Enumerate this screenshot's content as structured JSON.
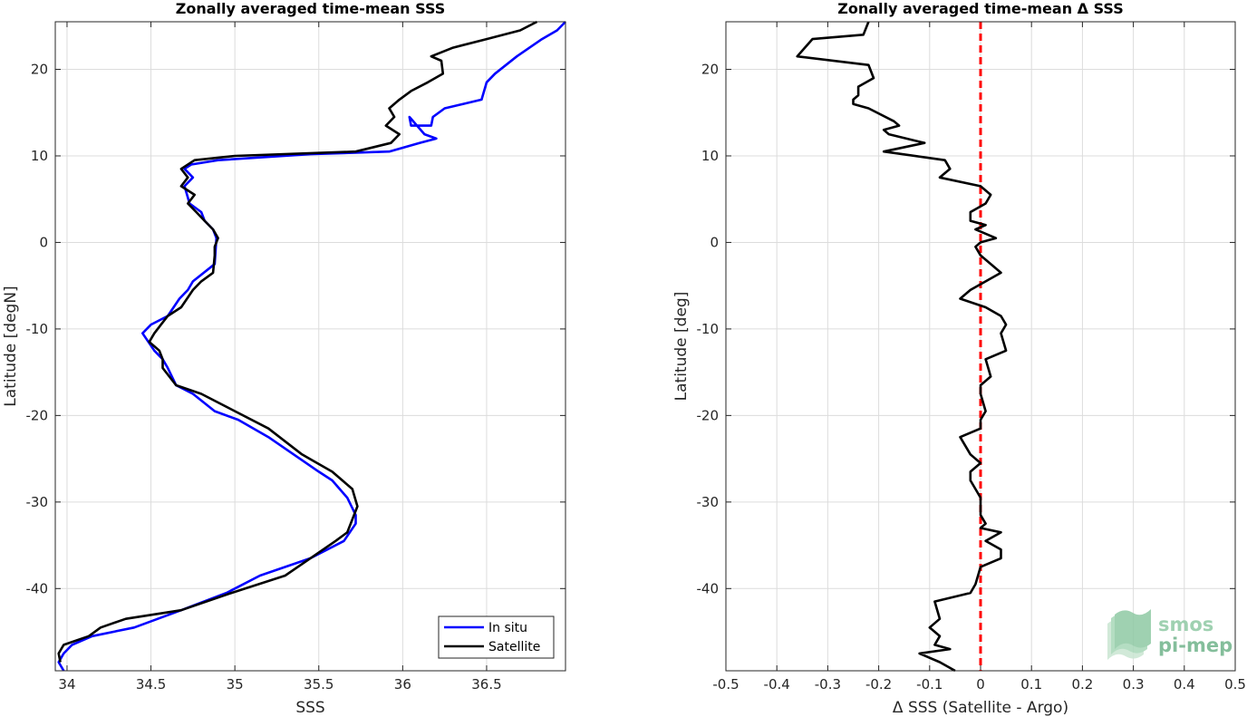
{
  "chart_data": [
    {
      "type": "line",
      "title": "Zonally averaged time-mean SSS",
      "xlabel": "SSS",
      "ylabel": "Latitude [degN]",
      "xlim": [
        33.93,
        36.97
      ],
      "ylim": [
        -49.5,
        25.5
      ],
      "xticks": [
        "34",
        "34.5",
        "35",
        "35.5",
        "36",
        "36.5"
      ],
      "yticks": [
        "20",
        "10",
        "0",
        "-10",
        "-20",
        "-30",
        "-40"
      ],
      "grid": true,
      "legend_position": "bottom-right",
      "series": [
        {
          "name": "In situ",
          "color": "#0000ff",
          "x": [
            36.97,
            36.92,
            36.83,
            36.68,
            36.55,
            36.5,
            36.47,
            36.25,
            36.18,
            36.17,
            36.05,
            36.04,
            36.13,
            36.2,
            36.1,
            35.92,
            35.45,
            34.9,
            34.74,
            34.7,
            34.75,
            34.7,
            34.73,
            34.8,
            34.82,
            34.87,
            34.89,
            34.88,
            34.75,
            34.72,
            34.67,
            34.6,
            34.5,
            34.45,
            34.52,
            34.57,
            34.6,
            34.65,
            34.75,
            34.88,
            35.02,
            35.2,
            35.35,
            35.5,
            35.58,
            35.67,
            35.72,
            35.72,
            35.65,
            35.45,
            35.15,
            34.95,
            34.68,
            34.4,
            34.15,
            34.03,
            33.98,
            33.95,
            33.98
          ],
          "y": [
            25.5,
            24.5,
            23.5,
            21.5,
            19.5,
            18.5,
            16.5,
            15.5,
            14.5,
            13.5,
            13.5,
            14.5,
            12.5,
            12.0,
            11.5,
            10.5,
            10.2,
            9.5,
            9.0,
            8.5,
            7.5,
            6.5,
            4.5,
            3.5,
            2.5,
            1.5,
            0.5,
            -2.5,
            -4.5,
            -5.5,
            -6.5,
            -8.5,
            -9.5,
            -10.5,
            -12.5,
            -13.5,
            -14.5,
            -16.5,
            -17.5,
            -19.5,
            -20.5,
            -22.5,
            -24.5,
            -26.5,
            -27.5,
            -29.5,
            -31.5,
            -32.5,
            -34.5,
            -36.5,
            -38.5,
            -40.5,
            -42.5,
            -44.5,
            -45.5,
            -46.5,
            -47.5,
            -48.5,
            -49.5
          ]
        },
        {
          "name": "Satellite",
          "color": "#000000",
          "x": [
            36.8,
            36.7,
            36.5,
            36.3,
            36.17,
            36.23,
            36.24,
            36.15,
            36.05,
            35.98,
            35.92,
            35.95,
            35.9,
            35.98,
            35.93,
            35.72,
            35.0,
            34.76,
            34.68,
            34.72,
            34.68,
            34.76,
            34.72,
            34.77,
            34.82,
            34.87,
            34.9,
            34.88,
            34.88,
            34.87,
            34.8,
            34.75,
            34.68,
            34.6,
            34.56,
            34.52,
            34.49,
            34.55,
            34.57,
            34.57,
            34.65,
            34.8,
            35.0,
            35.2,
            35.4,
            35.58,
            35.7,
            35.73,
            35.67,
            35.6,
            35.45,
            35.3,
            34.98,
            34.68,
            34.35,
            34.2,
            34.13,
            33.98,
            33.95,
            33.96
          ],
          "y": [
            25.5,
            24.5,
            23.5,
            22.5,
            21.5,
            21.0,
            19.5,
            18.5,
            17.5,
            16.5,
            15.5,
            14.5,
            13.5,
            12.5,
            11.5,
            10.5,
            10.0,
            9.5,
            8.5,
            7.5,
            6.5,
            5.5,
            4.5,
            3.5,
            2.5,
            1.5,
            0.5,
            -0.5,
            -1.5,
            -3.5,
            -4.5,
            -5.5,
            -7.5,
            -8.5,
            -9.5,
            -10.5,
            -11.5,
            -12.5,
            -13.5,
            -14.5,
            -16.5,
            -17.5,
            -19.5,
            -21.5,
            -24.5,
            -26.5,
            -28.5,
            -30.5,
            -33.5,
            -34.5,
            -36.5,
            -38.5,
            -40.5,
            -42.5,
            -43.5,
            -44.5,
            -45.5,
            -46.5,
            -47.5,
            -48.5
          ]
        }
      ]
    },
    {
      "type": "line",
      "title": "Zonally averaged time-mean Δ SSS",
      "xlabel": "Δ SSS (Satellite - Argo)",
      "ylabel": "Latitude [deg]",
      "xlim": [
        -0.5,
        0.5
      ],
      "ylim": [
        -49.5,
        25.5
      ],
      "xticks": [
        "-0.5",
        "-0.4",
        "-0.3",
        "-0.2",
        "-0.1",
        "0",
        "0.1",
        "0.2",
        "0.3",
        "0.4",
        "0.5"
      ],
      "yticks": [
        "20",
        "10",
        "0",
        "-10",
        "-20",
        "-30",
        "-40"
      ],
      "grid": true,
      "reference_line": {
        "x": 0,
        "color": "#ff0000",
        "style": "dashed"
      },
      "series": [
        {
          "color": "#000000",
          "x": [
            -0.22,
            -0.23,
            -0.33,
            -0.36,
            -0.22,
            -0.21,
            -0.24,
            -0.24,
            -0.25,
            -0.25,
            -0.22,
            -0.17,
            -0.16,
            -0.19,
            -0.18,
            -0.11,
            -0.19,
            -0.07,
            -0.06,
            -0.08,
            0.0,
            0.02,
            0.01,
            -0.02,
            -0.02,
            0.01,
            -0.01,
            0.03,
            0.0,
            -0.01,
            0.0,
            0.02,
            0.04,
            -0.02,
            -0.04,
            0.01,
            0.04,
            0.05,
            0.04,
            0.05,
            0.01,
            0.02,
            0.0,
            0.0,
            0.01,
            0.0,
            0.0,
            -0.04,
            -0.02,
            0.0,
            -0.02,
            -0.02,
            -0.01,
            0.0,
            0.0,
            0.0,
            0.01,
            0.0,
            0.04,
            0.01,
            0.04,
            0.04,
            0.0,
            -0.01,
            -0.02,
            -0.09,
            -0.08,
            -0.1,
            -0.08,
            -0.09,
            -0.06,
            -0.12,
            -0.08,
            -0.05
          ],
          "y": [
            25.5,
            24.0,
            23.5,
            21.5,
            20.5,
            19.0,
            18.0,
            17.0,
            16.5,
            16.0,
            15.5,
            14.0,
            13.5,
            13.0,
            12.5,
            11.5,
            10.5,
            9.5,
            8.5,
            7.5,
            6.5,
            5.5,
            4.5,
            3.5,
            2.5,
            2.0,
            1.5,
            0.5,
            0.0,
            -0.5,
            -1.5,
            -2.5,
            -3.5,
            -5.5,
            -6.5,
            -7.5,
            -8.5,
            -9.5,
            -10.5,
            -12.5,
            -13.5,
            -15.5,
            -16.5,
            -17.5,
            -19.5,
            -20.5,
            -21.5,
            -22.5,
            -24.5,
            -25.5,
            -26.5,
            -27.5,
            -28.5,
            -29.5,
            -30.5,
            -31.5,
            -32.5,
            -33.0,
            -33.5,
            -34.5,
            -35.5,
            -36.5,
            -37.5,
            -39.5,
            -40.5,
            -41.5,
            -43.5,
            -44.5,
            -45.5,
            -46.5,
            -47.0,
            -47.5,
            -48.5,
            -49.5
          ]
        }
      ]
    }
  ],
  "legend": {
    "in_situ": "In situ",
    "satellite": "Satellite"
  },
  "logo": {
    "line1": "smos",
    "line2": "pi-mep",
    "color": "#8fc9a4"
  }
}
